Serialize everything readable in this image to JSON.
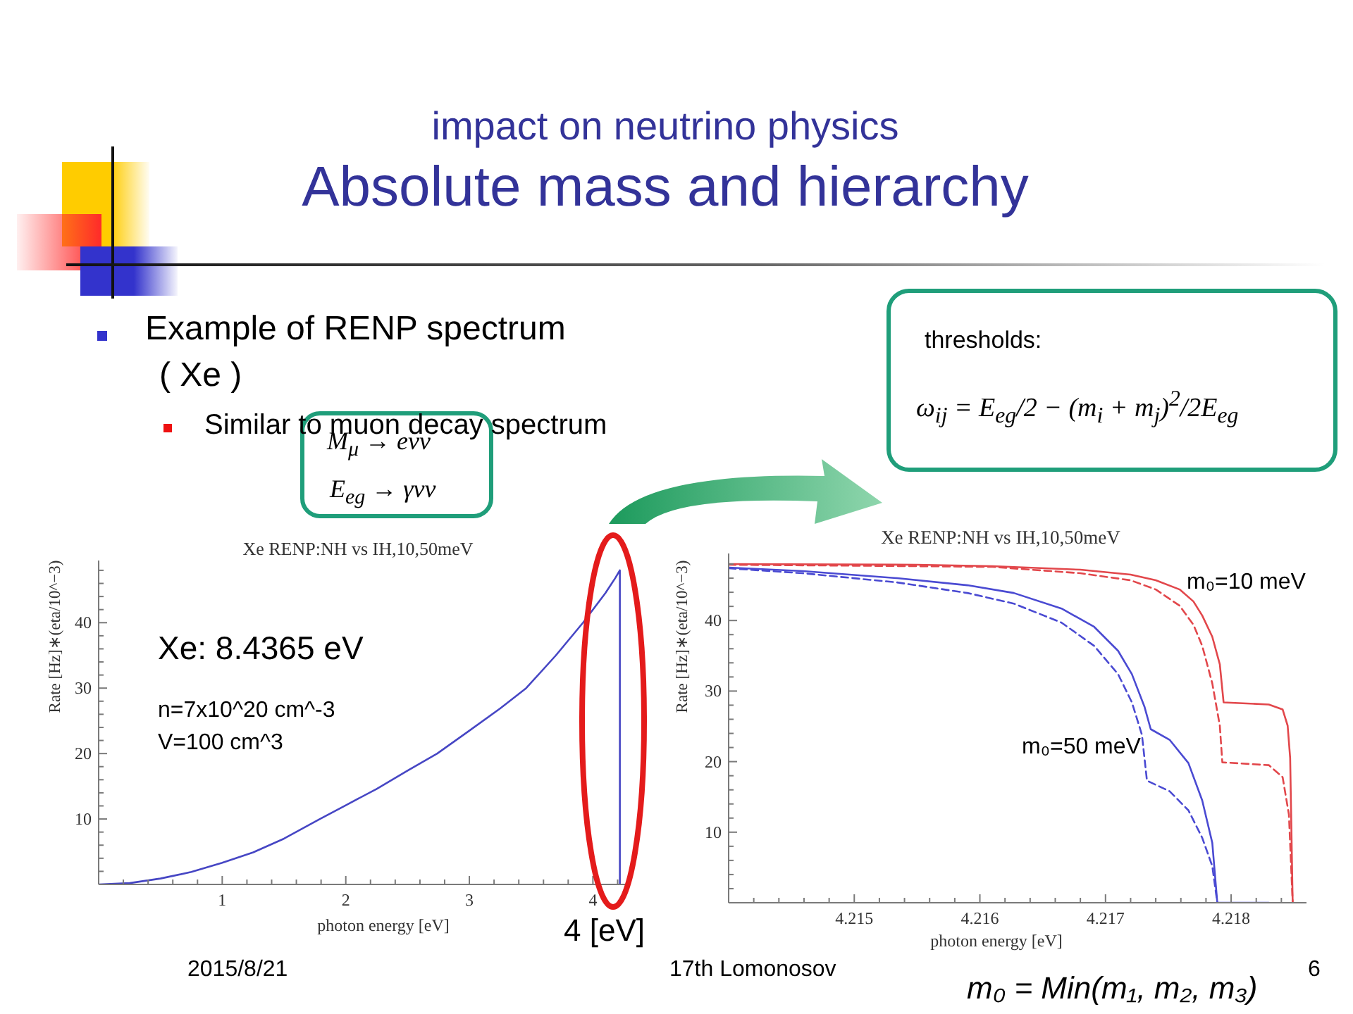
{
  "chart_data": [
    {
      "type": "other",
      "title": "Absolute mass and hierarchy",
      "subtitle": "impact on neutrino physics",
      "annotations": [
        "Example of RENP spectrum",
        "( Xe )",
        "Similar to muon decay spectrum",
        "M$_{μ}$ → eνν",
        "E$_{eg}$ → γνν",
        "thresholds:",
        "ω$_{ij}$ = E$_{eg}$/2 − (m$_{i}$ + m$_{j}$)$^{2}$/2E$_{eg}$",
        "2015/8/21",
        "17th Lomonosov",
        "6",
        "m₀ = Min(m₁, m₂, m₃)"
      ]
    },
    {
      "type": "line",
      "title": "Xe RENP:NH vs IH,10,50meV",
      "xlabel": "photon energy [eV]",
      "ylabel": "Rate [Hz]∗(eta/10^−3)",
      "x": [
        0,
        0.25,
        0.5,
        0.75,
        1,
        1.25,
        1.5,
        1.79,
        2,
        2.25,
        2.5,
        2.74,
        3,
        3.25,
        3.46,
        3.7,
        3.92,
        4,
        4.1,
        4.18,
        4.218,
        4.218
      ],
      "series": [
        {
          "color": "#4646c4",
          "values": [
            0,
            0.2,
            0.9,
            1.9,
            3.3,
            4.9,
            7,
            10,
            12.1,
            14.6,
            17.4,
            20,
            23.5,
            26.9,
            30,
            35,
            40,
            42,
            44.5,
            46.8,
            48,
            0
          ]
        }
      ],
      "xlim": [
        0,
        4.3
      ],
      "ylim": [
        0,
        49.5
      ],
      "xticks": [
        {
          "value": 0.2,
          "label": null
        },
        {
          "value": 0.4,
          "label": null
        },
        {
          "value": 0.6,
          "label": null
        },
        {
          "value": 0.8,
          "label": null
        },
        1,
        {
          "value": 1.2,
          "label": null
        },
        {
          "value": 1.4,
          "label": null
        },
        {
          "value": 1.6,
          "label": null
        },
        {
          "value": 1.8,
          "label": null
        },
        2,
        {
          "value": 2.2,
          "label": null
        },
        {
          "value": 2.4,
          "label": null
        },
        {
          "value": 2.6,
          "label": null
        },
        {
          "value": 2.8,
          "label": null
        },
        3,
        {
          "value": 3.2,
          "label": null
        },
        {
          "value": 3.4,
          "label": null
        },
        {
          "value": 3.6,
          "label": null
        },
        {
          "value": 3.8,
          "label": null
        },
        4,
        {
          "value": 4.2,
          "label": null
        }
      ],
      "yticks": [
        {
          "value": 2,
          "label": null
        },
        {
          "value": 4,
          "label": null
        },
        {
          "value": 6,
          "label": null
        },
        {
          "value": 8,
          "label": null
        },
        10,
        {
          "value": 12,
          "label": null
        },
        {
          "value": 14,
          "label": null
        },
        {
          "value": 16,
          "label": null
        },
        {
          "value": 18,
          "label": null
        },
        20,
        {
          "value": 22,
          "label": null
        },
        {
          "value": 24,
          "label": null
        },
        {
          "value": 26,
          "label": null
        },
        {
          "value": 28,
          "label": null
        },
        30,
        {
          "value": 32,
          "label": null
        },
        {
          "value": 34,
          "label": null
        },
        {
          "value": 36,
          "label": null
        },
        {
          "value": 38,
          "label": null
        },
        40,
        {
          "value": 42,
          "label": null
        },
        {
          "value": 44,
          "label": null
        },
        {
          "value": 46,
          "label": null
        },
        {
          "value": 48,
          "label": null
        }
      ],
      "annotations": [
        "Xe: 8.4365 eV",
        "n=7x10^20 cm^-3",
        "V=100 cm^3",
        "4 [eV]"
      ]
    },
    {
      "type": "line",
      "title": "Xe RENP:NH vs IH,10,50meV",
      "xlabel": "photon energy [eV]",
      "ylabel": "Rate [Hz]∗(eta/10^−3)",
      "series": [
        {
          "color": "#e2474b",
          "line_style": "solid",
          "x": [
            4.214,
            4.2155,
            4.2161,
            4.2168,
            4.2172,
            4.2174,
            4.21759,
            4.2177,
            4.21777,
            4.21785,
            4.21791,
            4.21794,
            4.2183,
            4.21841,
            4.21845,
            4.21847,
            4.21849
          ],
          "values": [
            48,
            47.9,
            47.7,
            47.2,
            46.5,
            45.7,
            44.4,
            42.7,
            40.7,
            37.7,
            33.8,
            28.4,
            28.1,
            27.4,
            25.1,
            20.5,
            0
          ]
        },
        {
          "color": "#e2474b",
          "line_style": "dashed",
          "x": [
            4.214,
            4.2155,
            4.2161,
            4.2168,
            4.2172,
            4.2174,
            4.21759,
            4.2177,
            4.21777,
            4.21785,
            4.21791,
            4.21793,
            4.2183,
            4.21841,
            4.21846,
            4.21849
          ],
          "values": [
            47.9,
            47.7,
            47.6,
            46.7,
            45.7,
            44.4,
            42.1,
            39.4,
            36.4,
            31.1,
            25.1,
            19.9,
            19.5,
            17.8,
            12.5,
            0
          ]
        },
        {
          "color": "#4a4ad2",
          "line_style": "solid",
          "x": [
            4.214,
            4.21459,
            4.21534,
            4.2159,
            4.21627,
            4.21665,
            4.21691,
            4.2171,
            4.21721,
            4.21731,
            4.21736,
            4.21751,
            4.21766,
            4.21777,
            4.21785,
            4.21789,
            4.2183
          ],
          "values": [
            47.5,
            47,
            46,
            45,
            43.9,
            41.7,
            39.1,
            35.7,
            32.4,
            27.8,
            24.6,
            23.1,
            19.8,
            14.5,
            8.5,
            0,
            0
          ]
        },
        {
          "color": "#4a4ad2",
          "line_style": "dashed",
          "x": [
            4.214,
            4.21459,
            4.21534,
            4.2159,
            4.21627,
            4.21665,
            4.21691,
            4.2171,
            4.21721,
            4.21729,
            4.21733,
            4.21751,
            4.21766,
            4.21777,
            4.21785,
            4.21789
          ],
          "values": [
            47.4,
            46.7,
            45.4,
            43.9,
            42.4,
            39.7,
            36.4,
            32.4,
            28.4,
            23.8,
            17.3,
            15.8,
            13.1,
            9.2,
            5.2,
            0
          ]
        }
      ],
      "xlim": [
        4.214,
        4.2186
      ],
      "ylim": [
        0,
        49.5
      ],
      "xticks": [
        {
          "value": 4.2142,
          "label": null
        },
        {
          "value": 4.2144,
          "label": null
        },
        {
          "value": 4.2146,
          "label": null
        },
        {
          "value": 4.2148,
          "label": null
        },
        4.215,
        {
          "value": 4.2152,
          "label": null
        },
        {
          "value": 4.2154,
          "label": null
        },
        {
          "value": 4.2156,
          "label": null
        },
        {
          "value": 4.2158,
          "label": null
        },
        4.216,
        {
          "value": 4.2162,
          "label": null
        },
        {
          "value": 4.2164,
          "label": null
        },
        {
          "value": 4.2166,
          "label": null
        },
        {
          "value": 4.2168,
          "label": null
        },
        4.217,
        {
          "value": 4.2172,
          "label": null
        },
        {
          "value": 4.2174,
          "label": null
        },
        {
          "value": 4.2176,
          "label": null
        },
        {
          "value": 4.2178,
          "label": null
        },
        4.218,
        {
          "value": 4.2182,
          "label": null
        },
        {
          "value": 4.2184,
          "label": null
        }
      ],
      "yticks": [
        {
          "value": 2,
          "label": null
        },
        {
          "value": 4,
          "label": null
        },
        {
          "value": 6,
          "label": null
        },
        {
          "value": 8,
          "label": null
        },
        10,
        {
          "value": 12,
          "label": null
        },
        {
          "value": 14,
          "label": null
        },
        {
          "value": 16,
          "label": null
        },
        {
          "value": 18,
          "label": null
        },
        20,
        {
          "value": 22,
          "label": null
        },
        {
          "value": 24,
          "label": null
        },
        {
          "value": 26,
          "label": null
        },
        {
          "value": 28,
          "label": null
        },
        30,
        {
          "value": 32,
          "label": null
        },
        {
          "value": 34,
          "label": null
        },
        {
          "value": 36,
          "label": null
        },
        {
          "value": 38,
          "label": null
        },
        40,
        {
          "value": 42,
          "label": null
        },
        {
          "value": 44,
          "label": null
        },
        {
          "value": 46,
          "label": null
        },
        {
          "value": 48,
          "label": null
        }
      ],
      "annotations": [
        "m₀=10 meV",
        "m₀=50 meV"
      ]
    }
  ]
}
